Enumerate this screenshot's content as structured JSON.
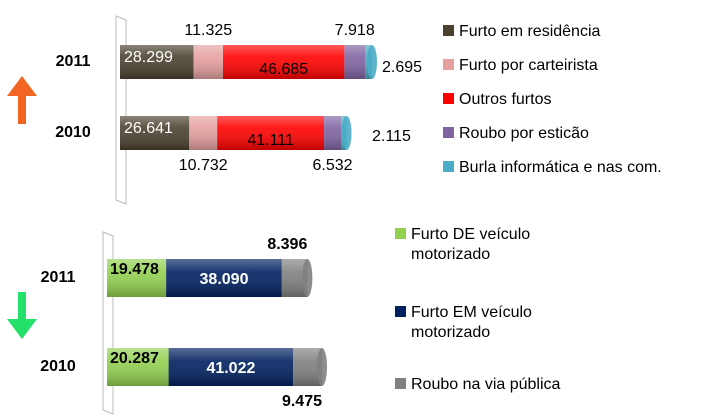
{
  "chart_data": [
    {
      "type": "stacked-bar-horizontal",
      "categories": [
        "2011",
        "2010"
      ],
      "series": [
        {
          "name": "Furto em residência",
          "color": "#4a4130",
          "values": [
            28299,
            26641
          ],
          "value_labels": [
            "28.299",
            "26.641"
          ]
        },
        {
          "name": "Furto por carteirista",
          "color": "#e6a0a0",
          "values": [
            11325,
            10732
          ],
          "value_labels": [
            "11.325",
            "10.732"
          ]
        },
        {
          "name": "Outros furtos",
          "color": "#ff0000",
          "values": [
            46685,
            41111
          ],
          "value_labels": [
            "46.685",
            "41.111"
          ]
        },
        {
          "name": "Roubo por esticão",
          "color": "#8064a2",
          "values": [
            7918,
            6532
          ],
          "value_labels": [
            "7.918",
            "6.532"
          ]
        },
        {
          "name": "Burla informática e nas com.",
          "color": "#4bacc6",
          "values": [
            2695,
            2115
          ],
          "value_labels": [
            "2.695",
            "2.115"
          ]
        }
      ]
    },
    {
      "type": "stacked-bar-horizontal",
      "categories": [
        "2011",
        "2010"
      ],
      "series": [
        {
          "name": "Furto DE veículo motorizado",
          "color": "#92d050",
          "values": [
            19478,
            20287
          ],
          "value_labels": [
            "19.478",
            "20.287"
          ]
        },
        {
          "name": "Furto EM veículo motorizado",
          "color": "#002060",
          "values": [
            38090,
            41022
          ],
          "value_labels": [
            "38.090",
            "41.022"
          ]
        },
        {
          "name": "Roubo na via pública",
          "color": "#808080",
          "values": [
            8396,
            9475
          ],
          "value_labels": [
            "8.396",
            "9.475"
          ]
        }
      ]
    }
  ]
}
